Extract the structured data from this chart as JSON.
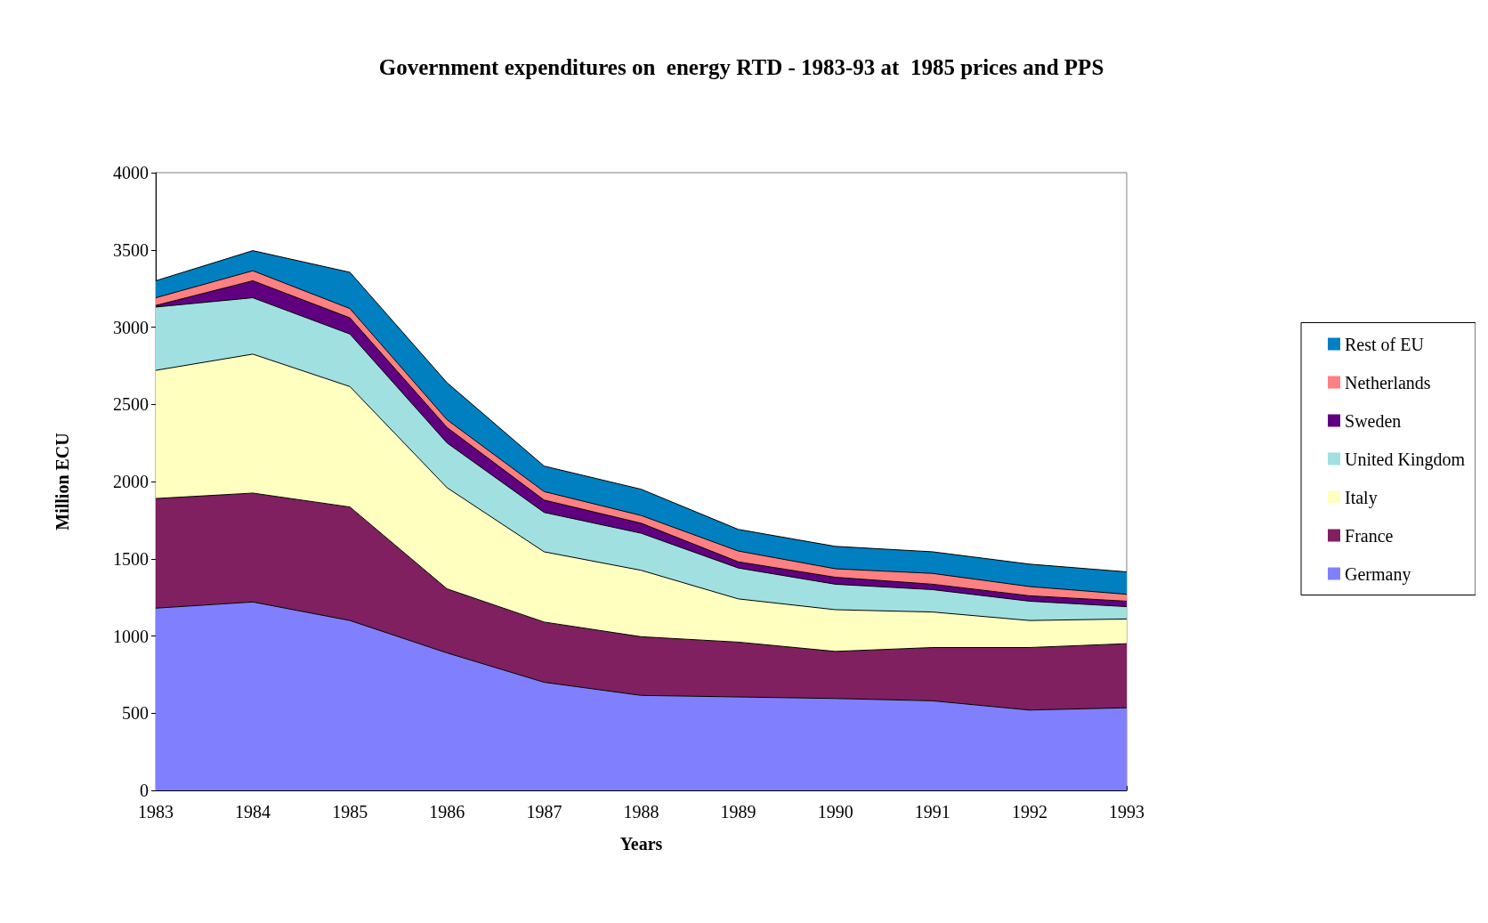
{
  "chart_data": {
    "type": "area",
    "stacked": true,
    "title": "Government expenditures on  energy RTD - 1983-93 at  1985 prices and PPS",
    "xlabel": "Years",
    "ylabel": "Million ECU",
    "categories": [
      "1983",
      "1984",
      "1985",
      "1986",
      "1987",
      "1988",
      "1989",
      "1990",
      "1991",
      "1992",
      "1993"
    ],
    "series": [
      {
        "name": "Germany",
        "color": "#8080ff",
        "values": [
          1180,
          1220,
          1100,
          890,
          700,
          615,
          605,
          595,
          580,
          520,
          535
        ]
      },
      {
        "name": "France",
        "color": "#802060",
        "values": [
          710,
          705,
          735,
          415,
          390,
          380,
          355,
          305,
          345,
          405,
          415
        ]
      },
      {
        "name": "Italy",
        "color": "#ffffc0",
        "values": [
          830,
          900,
          780,
          655,
          455,
          430,
          280,
          270,
          230,
          175,
          160
        ]
      },
      {
        "name": "United Kingdom",
        "color": "#a0e0e0",
        "values": [
          410,
          365,
          340,
          290,
          255,
          240,
          200,
          165,
          145,
          125,
          80
        ]
      },
      {
        "name": "Sweden",
        "color": "#600080",
        "values": [
          10,
          110,
          105,
          100,
          80,
          65,
          40,
          45,
          35,
          35,
          35
        ]
      },
      {
        "name": "Netherlands",
        "color": "#ff8080",
        "values": [
          50,
          65,
          60,
          50,
          55,
          50,
          70,
          55,
          70,
          60,
          45
        ]
      },
      {
        "name": "Rest of EU",
        "color": "#0080c0",
        "values": [
          110,
          130,
          235,
          240,
          165,
          170,
          140,
          145,
          140,
          145,
          145
        ]
      }
    ],
    "ylim": [
      0,
      4000
    ],
    "yticks": [
      0,
      500,
      1000,
      1500,
      2000,
      2500,
      3000,
      3500,
      4000
    ],
    "grid": false,
    "legend": "right",
    "marker": "none"
  }
}
